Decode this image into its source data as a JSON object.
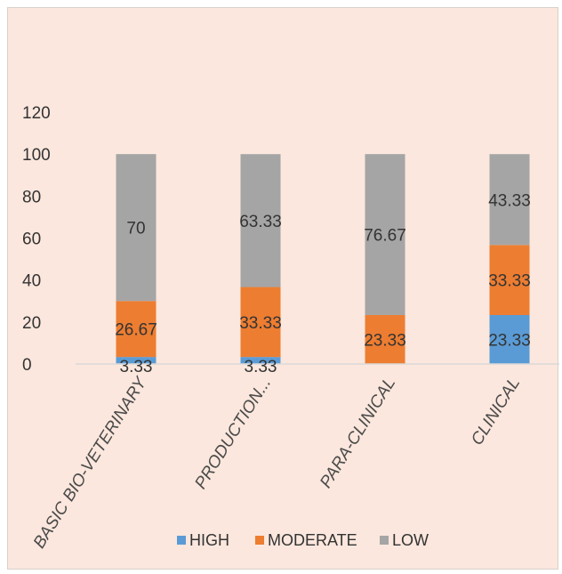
{
  "chart_data": {
    "type": "bar",
    "stacked": true,
    "categories": [
      "BASIC BIO-VETERINARY",
      "PRODUCTION...",
      "PARA-CLINICAL",
      "CLINICAL"
    ],
    "series": [
      {
        "name": "HIGH",
        "color": "#5b9bd5",
        "values": [
          3.33,
          3.33,
          0,
          23.33
        ],
        "labels": [
          "3.33",
          "3.33",
          "",
          "23.33"
        ]
      },
      {
        "name": "MODERATE",
        "color": "#ed7d31",
        "values": [
          26.67,
          33.33,
          23.33,
          33.33
        ],
        "labels": [
          "26.67",
          "33.33",
          "23.33",
          "33.33"
        ]
      },
      {
        "name": "LOW",
        "color": "#a5a5a5",
        "values": [
          70,
          63.33,
          76.67,
          43.33
        ],
        "labels": [
          "70",
          "63.33",
          "76.67",
          "43.33"
        ]
      }
    ],
    "yticks": [
      "0",
      "20",
      "40",
      "60",
      "80",
      "100",
      "120"
    ],
    "ylim": [
      0,
      120
    ],
    "legend_position": "bottom",
    "grid": false
  }
}
